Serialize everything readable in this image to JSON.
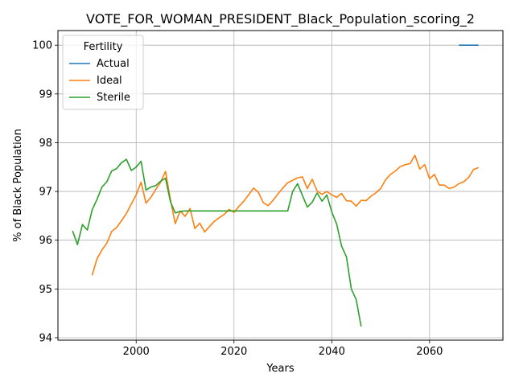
{
  "chart_data": {
    "type": "line",
    "title": "VOTE_FOR_WOMAN_PRESIDENT_Black_Population_scoring_2",
    "xlabel": "Years",
    "ylabel": "% of Black Population",
    "xlim": [
      1984,
      2075
    ],
    "ylim": [
      93.95,
      100.3
    ],
    "xticks": [
      2000,
      2020,
      2040,
      2060
    ],
    "yticks": [
      94,
      95,
      96,
      97,
      98,
      99,
      100
    ],
    "grid": true,
    "legend": {
      "title": "Fertility",
      "position": "top-left"
    },
    "series": [
      {
        "name": "Actual",
        "color": "#1f77b4",
        "x": [
          2066,
          2070
        ],
        "y": [
          100.0,
          100.0
        ]
      },
      {
        "name": "Ideal",
        "color": "#ff7f0e",
        "x": [
          1991,
          1992,
          1993,
          1994,
          1995,
          1996,
          1997,
          1998,
          1999,
          2000,
          2001,
          2002,
          2003,
          2004,
          2005,
          2006,
          2007,
          2008,
          2009,
          2010,
          2011,
          2012,
          2013,
          2014,
          2015,
          2016,
          2017,
          2018,
          2019,
          2020,
          2021,
          2022,
          2023,
          2024,
          2025,
          2026,
          2027,
          2028,
          2029,
          2030,
          2031,
          2032,
          2033,
          2034,
          2035,
          2036,
          2037,
          2038,
          2039,
          2040,
          2041,
          2042,
          2043,
          2044,
          2045,
          2046,
          2047,
          2048,
          2049,
          2050,
          2051,
          2052,
          2053,
          2054,
          2055,
          2056,
          2057,
          2058,
          2059,
          2060,
          2061,
          2062,
          2063,
          2064,
          2065,
          2066,
          2067,
          2068,
          2069,
          2070
        ],
        "y": [
          95.28,
          95.62,
          95.8,
          95.94,
          96.18,
          96.26,
          96.4,
          96.55,
          96.74,
          96.93,
          97.19,
          96.76,
          96.88,
          97.04,
          97.19,
          97.41,
          96.83,
          96.34,
          96.6,
          96.49,
          96.65,
          96.24,
          96.35,
          96.17,
          96.28,
          96.39,
          96.46,
          96.53,
          96.63,
          96.57,
          96.69,
          96.8,
          96.93,
          97.07,
          96.98,
          96.77,
          96.71,
          96.82,
          96.95,
          97.07,
          97.18,
          97.23,
          97.28,
          97.3,
          97.06,
          97.25,
          97.01,
          96.94,
          97.0,
          96.93,
          96.88,
          96.96,
          96.81,
          96.8,
          96.7,
          96.82,
          96.81,
          96.9,
          96.97,
          97.06,
          97.24,
          97.35,
          97.42,
          97.51,
          97.55,
          97.57,
          97.74,
          97.46,
          97.55,
          97.26,
          97.35,
          97.13,
          97.13,
          97.06,
          97.09,
          97.16,
          97.2,
          97.29,
          97.45,
          97.49
        ]
      },
      {
        "name": "Sterile",
        "color": "#2ca02c",
        "x": [
          1987,
          1988,
          1989,
          1990,
          1991,
          1992,
          1993,
          1994,
          1995,
          1996,
          1997,
          1998,
          1999,
          2000,
          2001,
          2002,
          2003,
          2004,
          2005,
          2006,
          2007,
          2008,
          2009,
          2010,
          2011,
          2012,
          2013,
          2014,
          2015,
          2016,
          2017,
          2018,
          2019,
          2020,
          2021,
          2022,
          2023,
          2024,
          2025,
          2026,
          2027,
          2028,
          2029,
          2030,
          2031,
          2032,
          2033,
          2034,
          2035,
          2036,
          2037,
          2038,
          2039,
          2040,
          2041,
          2042,
          2043,
          2044,
          2045,
          2046
        ],
        "y": [
          96.19,
          95.91,
          96.32,
          96.21,
          96.62,
          96.84,
          97.09,
          97.2,
          97.42,
          97.47,
          97.59,
          97.66,
          97.43,
          97.5,
          97.62,
          97.03,
          97.09,
          97.12,
          97.21,
          97.27,
          96.79,
          96.56,
          96.59,
          96.6,
          96.6,
          96.6,
          96.6,
          96.6,
          96.6,
          96.6,
          96.6,
          96.6,
          96.6,
          96.6,
          96.6,
          96.6,
          96.6,
          96.6,
          96.6,
          96.6,
          96.6,
          96.6,
          96.6,
          96.6,
          96.6,
          97.0,
          97.16,
          96.92,
          96.68,
          96.78,
          96.97,
          96.8,
          96.93,
          96.58,
          96.33,
          95.88,
          95.66,
          95.0,
          94.78,
          94.23
        ]
      }
    ]
  }
}
